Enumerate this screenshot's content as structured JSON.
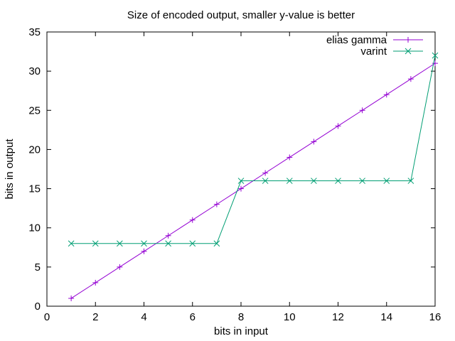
{
  "chart_data": {
    "type": "line",
    "title": "Size of encoded output, smaller y-value is better",
    "xlabel": "bits in input",
    "ylabel": "bits in output",
    "xlim": [
      0,
      16
    ],
    "ylim": [
      0,
      35
    ],
    "xticks": [
      0,
      2,
      4,
      6,
      8,
      10,
      12,
      14,
      16
    ],
    "yticks": [
      0,
      5,
      10,
      15,
      20,
      25,
      30,
      35
    ],
    "grid": false,
    "legend_position": "top-right",
    "series": [
      {
        "name": "elias gamma",
        "color": "#9400d3",
        "marker": "plus",
        "x": [
          1,
          2,
          3,
          4,
          5,
          6,
          7,
          8,
          9,
          10,
          11,
          12,
          13,
          14,
          15,
          16
        ],
        "y": [
          1,
          3,
          5,
          7,
          9,
          11,
          13,
          15,
          17,
          19,
          21,
          23,
          25,
          27,
          29,
          31
        ]
      },
      {
        "name": "varint",
        "color": "#009e73",
        "marker": "cross",
        "x": [
          1,
          2,
          3,
          4,
          5,
          6,
          7,
          8,
          9,
          10,
          11,
          12,
          13,
          14,
          15,
          16
        ],
        "y": [
          8,
          8,
          8,
          8,
          8,
          8,
          8,
          16,
          16,
          16,
          16,
          16,
          16,
          16,
          16,
          32
        ]
      }
    ]
  }
}
